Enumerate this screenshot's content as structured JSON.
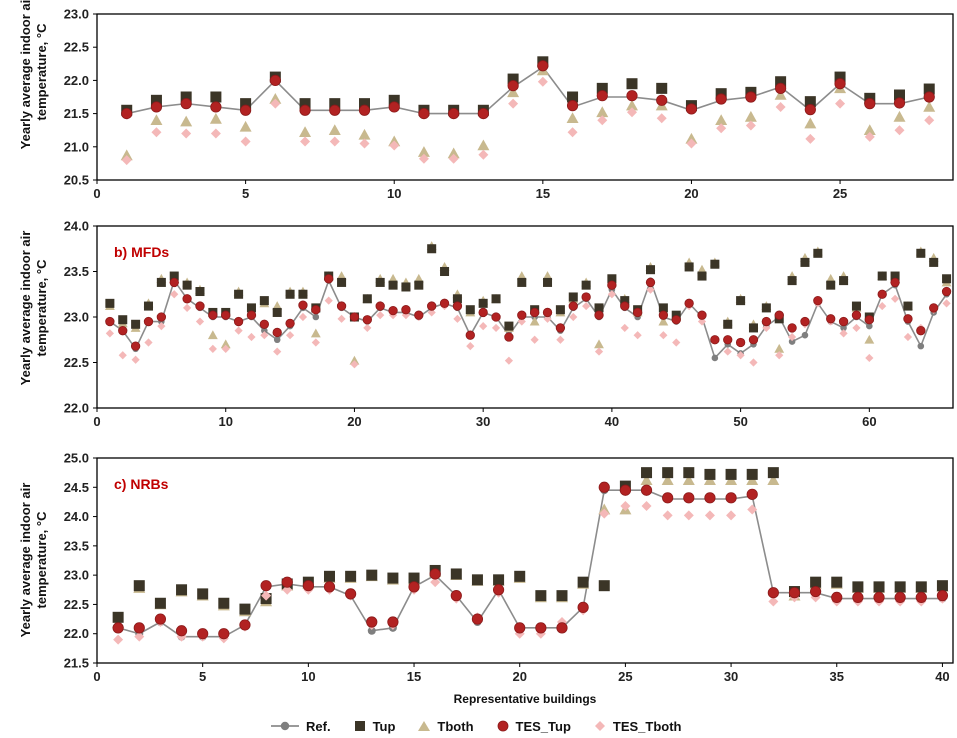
{
  "chart_data": [
    {
      "type": "line",
      "panel_label": "",
      "ylabel": "Yearly average indoor air temperature, °C",
      "xlabel": "",
      "xlim": [
        0,
        28.8
      ],
      "ylim": [
        20.5,
        23.0
      ],
      "xticks": [
        0,
        5,
        10,
        15,
        20,
        25
      ],
      "yticks": [
        "20.5",
        "21.0",
        "21.5",
        "22.0",
        "22.5",
        "23.0"
      ],
      "series": [
        {
          "name": "Ref.",
          "values": [
            21.5,
            21.6,
            21.65,
            21.6,
            21.55,
            22.0,
            21.55,
            21.55,
            21.55,
            21.6,
            21.5,
            21.5,
            21.5,
            21.9,
            22.2,
            21.6,
            21.75,
            21.75,
            21.7,
            21.55,
            21.7,
            21.75,
            21.9,
            21.55,
            21.95,
            21.65,
            21.65,
            21.75
          ]
        },
        {
          "name": "Tup",
          "values": [
            21.55,
            21.7,
            21.75,
            21.75,
            21.65,
            22.05,
            21.65,
            21.65,
            21.65,
            21.7,
            21.55,
            21.55,
            21.55,
            22.02,
            22.28,
            21.75,
            21.88,
            21.95,
            21.88,
            21.62,
            21.8,
            21.82,
            21.98,
            21.68,
            22.05,
            21.73,
            21.78,
            21.87
          ]
        },
        {
          "name": "Tboth",
          "values": [
            20.87,
            21.4,
            21.38,
            21.42,
            21.3,
            21.72,
            21.22,
            21.25,
            21.18,
            21.08,
            20.92,
            20.9,
            21.02,
            21.82,
            22.15,
            21.43,
            21.52,
            21.62,
            21.62,
            21.12,
            21.4,
            21.45,
            21.78,
            21.35,
            21.88,
            21.25,
            21.45,
            21.6
          ]
        },
        {
          "name": "TES_Tup",
          "values": [
            21.5,
            21.6,
            21.65,
            21.6,
            21.55,
            22.0,
            21.55,
            21.55,
            21.55,
            21.6,
            21.5,
            21.5,
            21.5,
            21.92,
            22.22,
            21.62,
            21.77,
            21.77,
            21.7,
            21.57,
            21.72,
            21.75,
            21.88,
            21.56,
            21.95,
            21.65,
            21.66,
            21.75
          ]
        },
        {
          "name": "TES_Tboth",
          "values": [
            20.8,
            21.22,
            21.2,
            21.2,
            21.08,
            21.65,
            21.08,
            21.08,
            21.05,
            21.02,
            20.82,
            20.82,
            20.88,
            21.65,
            21.98,
            21.22,
            21.4,
            21.52,
            21.43,
            21.05,
            21.28,
            21.32,
            21.6,
            21.12,
            21.65,
            21.15,
            21.25,
            21.4
          ]
        }
      ]
    },
    {
      "type": "line",
      "panel_label": "b)  MFDs",
      "ylabel": "Yearly average indoor air temperature, °C",
      "xlabel": "",
      "xlim": [
        0,
        66.5
      ],
      "ylim": [
        22.0,
        24.0
      ],
      "xticks": [
        0,
        10,
        20,
        30,
        40,
        50,
        60
      ],
      "yticks": [
        "22.0",
        "22.5",
        "23.0",
        "23.5",
        "24.0"
      ],
      "series": [
        {
          "name": "Ref.",
          "values": [
            22.95,
            22.85,
            22.65,
            22.95,
            22.95,
            23.4,
            23.2,
            23.1,
            23.0,
            23.0,
            22.95,
            23.0,
            22.85,
            22.75,
            22.9,
            23.1,
            23.0,
            23.4,
            23.1,
            23.0,
            22.95,
            23.1,
            23.05,
            23.05,
            23.0,
            23.1,
            23.15,
            23.1,
            22.8,
            23.05,
            23.0,
            22.8,
            23.0,
            23.0,
            23.0,
            22.85,
            23.1,
            23.2,
            23.0,
            23.3,
            23.1,
            23.0,
            23.4,
            23.0,
            22.95,
            23.15,
            23.0,
            22.55,
            22.7,
            22.6,
            22.7,
            22.9,
            23.0,
            22.73,
            22.8,
            23.15,
            22.95,
            22.88,
            23.0,
            22.9,
            23.25,
            23.35,
            22.95,
            22.68,
            23.05,
            23.25
          ]
        },
        {
          "name": "Tup",
          "values": [
            23.15,
            22.97,
            22.92,
            23.12,
            23.38,
            23.45,
            23.35,
            23.28,
            23.05,
            23.05,
            23.25,
            23.1,
            23.18,
            23.05,
            23.25,
            23.25,
            23.1,
            23.45,
            23.38,
            23.0,
            23.2,
            23.38,
            23.35,
            23.33,
            23.35,
            23.75,
            23.5,
            23.2,
            23.08,
            23.15,
            23.2,
            22.9,
            23.38,
            23.08,
            23.38,
            23.08,
            23.22,
            23.35,
            23.1,
            23.42,
            23.18,
            23.08,
            23.52,
            23.1,
            23.02,
            23.55,
            23.45,
            23.58,
            22.92,
            23.18,
            22.88,
            23.1,
            22.98,
            23.4,
            23.6,
            23.7,
            23.35,
            23.4,
            23.12,
            23.0,
            23.45,
            23.45,
            23.12,
            23.7,
            23.6,
            23.42
          ]
        },
        {
          "name": "Tboth",
          "values": [
            23.12,
            22.93,
            22.88,
            23.15,
            23.42,
            23.42,
            23.38,
            23.3,
            22.8,
            22.7,
            23.28,
            23.05,
            23.15,
            23.12,
            23.28,
            23.28,
            22.82,
            23.45,
            23.45,
            22.52,
            23.2,
            23.42,
            23.42,
            23.38,
            23.42,
            23.78,
            23.55,
            23.25,
            23.05,
            23.18,
            23.2,
            22.88,
            23.45,
            22.95,
            23.45,
            23.05,
            23.2,
            23.38,
            22.7,
            23.38,
            23.2,
            23.05,
            23.55,
            22.95,
            23.0,
            23.6,
            23.52,
            23.6,
            22.95,
            23.2,
            22.92,
            23.12,
            22.65,
            23.45,
            23.65,
            23.72,
            23.42,
            23.45,
            23.1,
            22.75,
            23.45,
            23.42,
            23.12,
            23.72,
            23.65,
            23.38
          ]
        },
        {
          "name": "TES_Tup",
          "values": [
            22.95,
            22.85,
            22.68,
            22.95,
            23.0,
            23.38,
            23.2,
            23.12,
            23.02,
            23.02,
            22.95,
            23.02,
            22.92,
            22.83,
            22.93,
            23.13,
            23.08,
            23.42,
            23.12,
            23.0,
            22.97,
            23.12,
            23.07,
            23.08,
            23.02,
            23.12,
            23.15,
            23.12,
            22.8,
            23.05,
            23.0,
            22.78,
            23.02,
            23.05,
            23.05,
            22.88,
            23.12,
            23.22,
            23.02,
            23.35,
            23.12,
            23.05,
            23.38,
            23.02,
            22.97,
            23.15,
            23.02,
            22.75,
            22.75,
            22.72,
            22.75,
            22.95,
            23.02,
            22.88,
            22.95,
            23.18,
            22.98,
            22.95,
            23.02,
            22.97,
            23.25,
            23.38,
            22.98,
            22.85,
            23.1,
            23.28
          ]
        },
        {
          "name": "TES_Tboth",
          "values": [
            22.82,
            22.58,
            22.53,
            22.72,
            22.9,
            23.25,
            23.1,
            22.95,
            22.65,
            22.65,
            22.85,
            22.78,
            22.8,
            22.62,
            22.8,
            23.0,
            22.72,
            23.18,
            22.98,
            22.48,
            22.88,
            23.02,
            23.02,
            23.02,
            23.0,
            23.05,
            23.12,
            22.98,
            22.68,
            22.9,
            22.88,
            22.52,
            22.95,
            22.75,
            22.98,
            22.75,
            23.0,
            23.12,
            22.62,
            23.25,
            22.88,
            22.8,
            23.3,
            22.8,
            22.72,
            23.12,
            22.95,
            22.75,
            22.62,
            22.58,
            22.5,
            22.88,
            22.58,
            22.78,
            22.92,
            23.15,
            22.95,
            22.82,
            22.88,
            22.55,
            23.12,
            23.2,
            22.78,
            22.88,
            23.08,
            23.15
          ]
        }
      ]
    },
    {
      "type": "line",
      "panel_label": "c)  NRBs",
      "ylabel": "Yearly average indoor air temperature, °C",
      "xlabel": "Representative buildings",
      "xlim": [
        0,
        40.5
      ],
      "ylim": [
        21.5,
        25.0
      ],
      "xticks": [
        0,
        5,
        10,
        15,
        20,
        25,
        30,
        35,
        40
      ],
      "yticks": [
        "21.5",
        "22.0",
        "22.5",
        "23.0",
        "23.5",
        "24.0",
        "24.5",
        "25.0"
      ],
      "series": [
        {
          "name": "Ref.",
          "values": [
            22.1,
            22.0,
            22.2,
            21.95,
            21.95,
            21.95,
            22.15,
            22.8,
            22.85,
            22.8,
            22.8,
            22.65,
            22.05,
            22.1,
            22.8,
            23.0,
            22.65,
            22.2,
            22.75,
            22.1,
            22.1,
            22.1,
            22.45,
            24.45,
            24.45,
            24.45,
            24.3,
            24.3,
            24.3,
            24.3,
            24.35,
            22.7,
            22.7,
            22.7,
            22.6,
            22.6,
            22.6,
            22.6,
            22.6,
            22.6
          ]
        },
        {
          "name": "Tup",
          "values": [
            22.28,
            22.82,
            22.52,
            22.75,
            22.68,
            22.52,
            22.42,
            22.6,
            22.85,
            22.88,
            22.98,
            22.98,
            23.0,
            22.95,
            22.95,
            23.08,
            23.02,
            22.92,
            22.92,
            22.98,
            22.65,
            22.65,
            22.88,
            22.82,
            24.52,
            24.75,
            24.75,
            24.75,
            24.72,
            24.72,
            24.72,
            24.75,
            22.72,
            22.88,
            22.88,
            22.8,
            22.8,
            22.8,
            22.8,
            22.82
          ]
        },
        {
          "name": "Tboth",
          "values": [
            22.18,
            22.78,
            22.5,
            22.72,
            22.65,
            22.48,
            22.38,
            22.55,
            22.82,
            22.85,
            22.95,
            22.95,
            22.98,
            22.92,
            22.92,
            23.05,
            23.0,
            22.9,
            22.9,
            22.95,
            22.62,
            22.62,
            22.85,
            24.12,
            24.12,
            24.62,
            24.62,
            24.62,
            24.62,
            24.62,
            24.62,
            24.62,
            22.65,
            22.85,
            22.85,
            22.78,
            22.78,
            22.78,
            22.78,
            22.8
          ]
        },
        {
          "name": "TES_Tup",
          "values": [
            22.1,
            22.1,
            22.25,
            22.05,
            22.0,
            22.0,
            22.15,
            22.82,
            22.88,
            22.82,
            22.8,
            22.68,
            22.2,
            22.2,
            22.8,
            23.02,
            22.65,
            22.25,
            22.75,
            22.1,
            22.1,
            22.1,
            22.45,
            24.5,
            24.45,
            24.45,
            24.32,
            24.32,
            24.32,
            24.32,
            24.38,
            22.7,
            22.7,
            22.72,
            22.62,
            22.62,
            22.62,
            22.62,
            22.62,
            22.65
          ]
        },
        {
          "name": "TES_Tboth",
          "values": [
            21.9,
            21.95,
            22.2,
            21.95,
            21.95,
            21.92,
            22.12,
            22.65,
            22.75,
            22.75,
            22.75,
            22.65,
            22.15,
            22.15,
            22.75,
            22.88,
            22.6,
            22.28,
            22.7,
            22.0,
            22.0,
            22.2,
            22.4,
            24.05,
            24.18,
            24.18,
            24.02,
            24.02,
            24.02,
            24.02,
            24.12,
            22.55,
            22.62,
            22.62,
            22.55,
            22.55,
            22.55,
            22.55,
            22.55,
            22.6
          ]
        }
      ]
    }
  ],
  "legend": [
    {
      "name": "Ref.",
      "symbol": "line-circle",
      "color": "#7f7f7f"
    },
    {
      "name": "Tup",
      "symbol": "square",
      "color": "#3b3527"
    },
    {
      "name": "Tboth",
      "symbol": "triangle",
      "color": "#c8b98f"
    },
    {
      "name": "TES_Tup",
      "symbol": "circle",
      "color": "#b22222"
    },
    {
      "name": "TES_Tboth",
      "symbol": "diamond",
      "color": "#f4b8b8"
    }
  ],
  "colors": {
    "ref_line": "#8c8c8c",
    "ref_marker": "#7f7f7f",
    "tup": "#3b3527",
    "tboth": "#c8b98f",
    "tes_tup": "#b22222",
    "tes_tup_edge": "#8b1a1a",
    "tes_tboth": "#f4b8b8",
    "panel_label": "#c00000"
  }
}
